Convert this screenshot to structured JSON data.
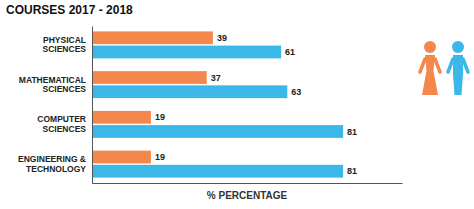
{
  "chart_data": {
    "type": "bar",
    "title": "COURSES 2017 - 2018",
    "orientation": "horizontal",
    "categories": [
      "PHYSICAL\nSCIENCES",
      "MATHEMATICAL\nSCIENCES",
      "COMPUTER\nSCIENCES",
      "ENGINEERING &\nTECHNOLOGY"
    ],
    "series": [
      {
        "color": "#F4874B",
        "values": [
          39,
          37,
          19,
          19
        ]
      },
      {
        "color": "#3BB8E8",
        "values": [
          61,
          63,
          81,
          81
        ]
      }
    ],
    "xlabel": "% PERCENTAGE",
    "xlim": [
      0,
      100
    ],
    "tick_labels": "y",
    "data_labels": true,
    "grid": false
  }
}
